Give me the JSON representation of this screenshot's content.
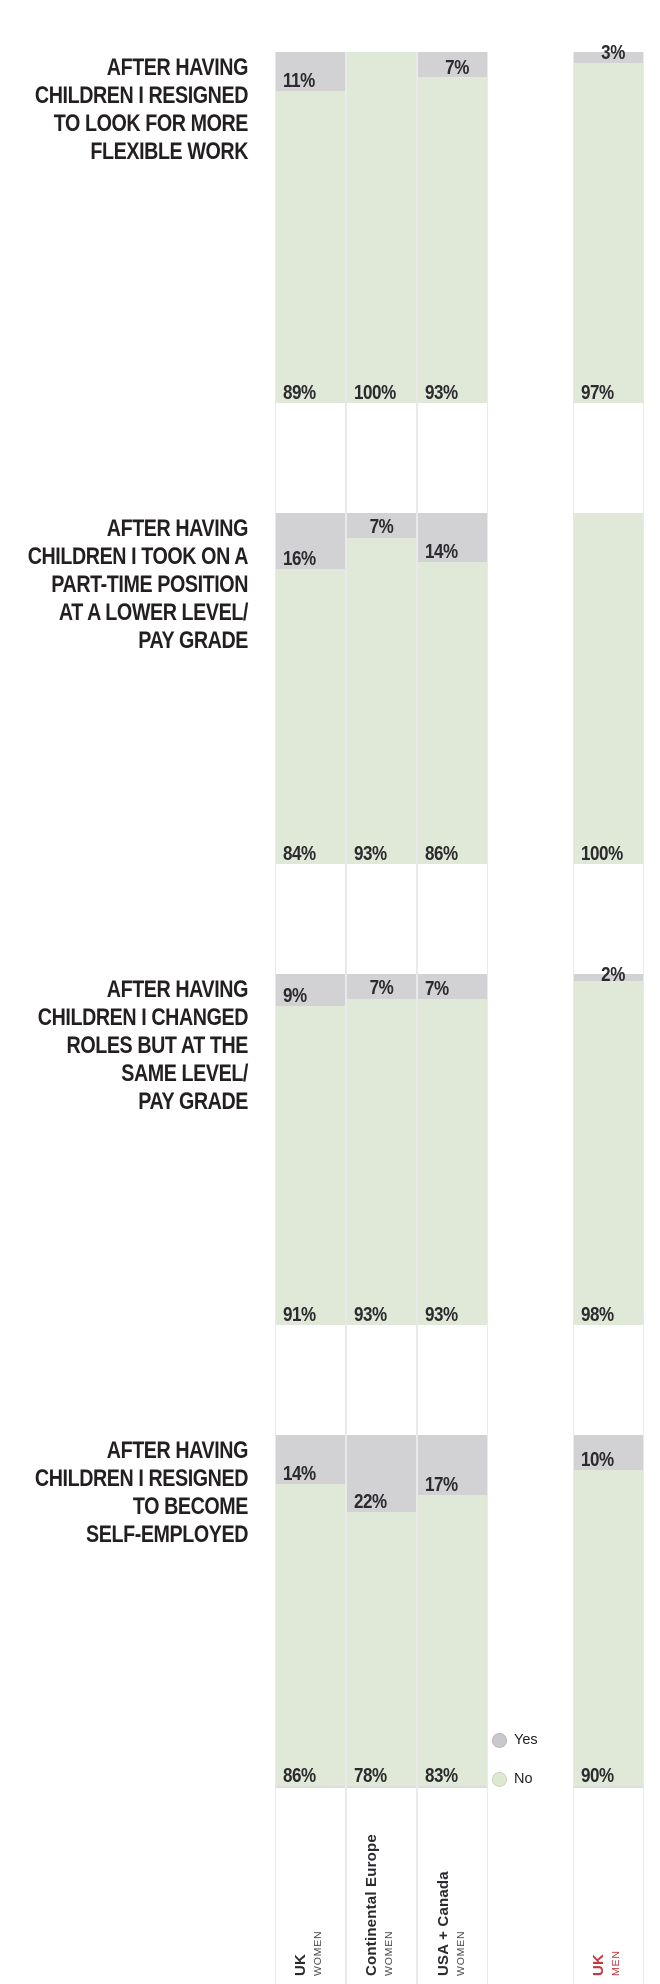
{
  "chart_data": {
    "type": "bar",
    "stacked": true,
    "orientation": "vertical",
    "unit": "%",
    "ylim": [
      0,
      100
    ],
    "grid": false,
    "colors": {
      "yes": "#d2d1d4",
      "no": "#e0e9d7",
      "legend_yes": "#c9c8cd",
      "legend_no": "#dde8d2",
      "question_text": "#231f20",
      "value_text": "#2b2a2e",
      "axis_text": "#2b2a2e",
      "axis_highlight": "#c0393f",
      "separator": "#e9e9e9"
    },
    "categories": [
      "UK Women",
      "Continental Europe Women",
      "USA + Canada Women",
      "UK Men"
    ],
    "columns": [
      {
        "label": "UK",
        "sublabel": "WOMEN",
        "highlight": false
      },
      {
        "label": "Continental Europe",
        "sublabel": "WOMEN",
        "highlight": false
      },
      {
        "label": "USA + Canada",
        "sublabel": "WOMEN",
        "highlight": false
      },
      {
        "label": "UK",
        "sublabel": "MEN",
        "highlight": true
      }
    ],
    "legend": [
      {
        "label": "Yes",
        "swatch": "legend_yes"
      },
      {
        "label": "No",
        "swatch": "legend_no"
      }
    ],
    "questions": [
      {
        "label": "AFTER HAVING CHILDREN I RESIGNED TO LOOK FOR MORE FLEXIBLE WORK",
        "label_lines": [
          "AFTER HAVING",
          "CHILDREN I RESIGNED",
          "TO LOOK FOR MORE",
          "FLEXIBLE WORK"
        ],
        "series": [
          {
            "name": "Yes",
            "values": [
              11,
              0,
              7,
              3
            ]
          },
          {
            "name": "No",
            "values": [
              89,
              100,
              93,
              97
            ]
          }
        ],
        "yes_labels": [
          "11%",
          null,
          "7%",
          "3%"
        ],
        "no_labels": [
          "89%",
          "100%",
          "93%",
          "97%"
        ],
        "yes_label_pos": [
          "left",
          null,
          "right",
          "above-right"
        ]
      },
      {
        "label": "AFTER HAVING CHILDREN I TOOK ON A PART-TIME POSITION AT A LOWER LEVEL/ PAY GRADE",
        "label_lines": [
          "AFTER HAVING",
          "CHILDREN I TOOK ON A",
          "PART-TIME POSITION",
          "AT A LOWER LEVEL/",
          "PAY GRADE"
        ],
        "series": [
          {
            "name": "Yes",
            "values": [
              16,
              7,
              14,
              0
            ]
          },
          {
            "name": "No",
            "values": [
              84,
              93,
              86,
              100
            ]
          }
        ],
        "yes_labels": [
          "16%",
          "7%",
          "14%",
          null
        ],
        "no_labels": [
          "84%",
          "93%",
          "86%",
          "100%"
        ],
        "yes_label_pos": [
          "left",
          "center-top",
          "left",
          null
        ]
      },
      {
        "label": "AFTER HAVING CHILDREN I CHANGED ROLES BUT AT THE SAME LEVEL/ PAY GRADE",
        "label_lines": [
          "AFTER HAVING",
          "CHILDREN I CHANGED",
          "ROLES BUT AT THE",
          "SAME LEVEL/",
          "PAY GRADE"
        ],
        "series": [
          {
            "name": "Yes",
            "values": [
              9,
              7,
              7,
              2
            ]
          },
          {
            "name": "No",
            "values": [
              91,
              93,
              93,
              98
            ]
          }
        ],
        "yes_labels": [
          "9%",
          "7%",
          "7%",
          "2%"
        ],
        "no_labels": [
          "91%",
          "93%",
          "93%",
          "98%"
        ],
        "yes_label_pos": [
          "left",
          "center-top",
          "left",
          "above-right"
        ]
      },
      {
        "label": "AFTER HAVING CHILDREN I RESIGNED TO BECOME SELF-EMPLOYED",
        "label_lines": [
          "AFTER HAVING",
          "CHILDREN I RESIGNED",
          "TO BECOME",
          "SELF-EMPLOYED"
        ],
        "series": [
          {
            "name": "Yes",
            "values": [
              14,
              22,
              17,
              10
            ]
          },
          {
            "name": "No",
            "values": [
              86,
              78,
              83,
              90
            ]
          }
        ],
        "yes_labels": [
          "14%",
          "22%",
          "17%",
          "10%"
        ],
        "no_labels": [
          "86%",
          "78%",
          "83%",
          "90%"
        ],
        "yes_label_pos": [
          "left",
          "left",
          "left",
          "left"
        ]
      }
    ]
  }
}
